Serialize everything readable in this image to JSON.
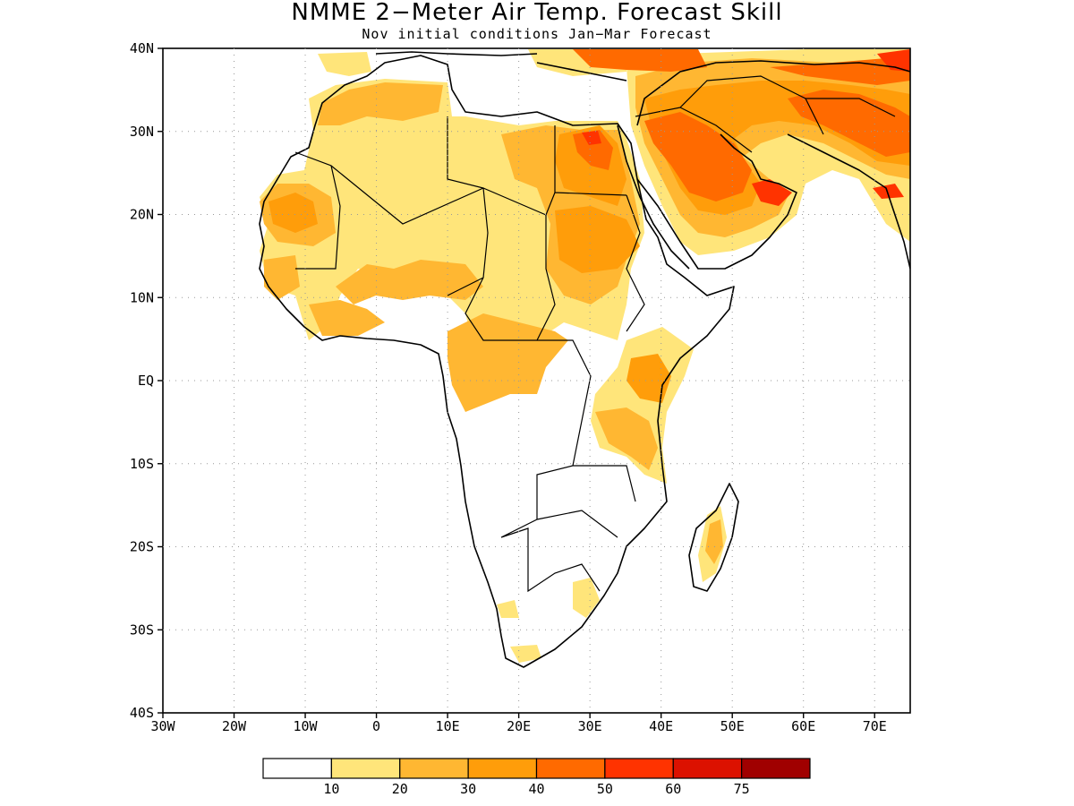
{
  "title": "NMME 2−Meter Air Temp. Forecast Skill",
  "subtitle": "Nov initial conditions  Jan−Mar Forecast",
  "map": {
    "lon_range": [
      -30,
      75
    ],
    "lat_range": [
      -40,
      40
    ],
    "lat_ticks": [
      {
        "value": 40,
        "label": "40N"
      },
      {
        "value": 30,
        "label": "30N"
      },
      {
        "value": 20,
        "label": "20N"
      },
      {
        "value": 10,
        "label": "10N"
      },
      {
        "value": 0,
        "label": "EQ"
      },
      {
        "value": -10,
        "label": "10S"
      },
      {
        "value": -20,
        "label": "20S"
      },
      {
        "value": -30,
        "label": "30S"
      },
      {
        "value": -40,
        "label": "40S"
      }
    ],
    "lon_ticks": [
      {
        "value": -30,
        "label": "30W"
      },
      {
        "value": -20,
        "label": "20W"
      },
      {
        "value": -10,
        "label": "10W"
      },
      {
        "value": 0,
        "label": "0"
      },
      {
        "value": 10,
        "label": "10E"
      },
      {
        "value": 20,
        "label": "20E"
      },
      {
        "value": 30,
        "label": "30E"
      },
      {
        "value": 40,
        "label": "40E"
      },
      {
        "value": 50,
        "label": "50E"
      },
      {
        "value": 60,
        "label": "60E"
      },
      {
        "value": 70,
        "label": "70E"
      }
    ],
    "grid": true
  },
  "colorbar": {
    "colors": [
      "#ffffff",
      "#ffe57a",
      "#ffb732",
      "#ff9d0a",
      "#ff6a00",
      "#ff3300",
      "#dc1100",
      "#a00000"
    ],
    "labels": [
      "10",
      "20",
      "30",
      "40",
      "50",
      "60",
      "75"
    ]
  },
  "legend_colors": {
    "skill_10_20": "#ffe57a",
    "skill_20_30": "#ffb732",
    "skill_30_40": "#ff9d0a",
    "skill_40_50": "#ff6a00",
    "skill_50_60": "#ff3300"
  }
}
